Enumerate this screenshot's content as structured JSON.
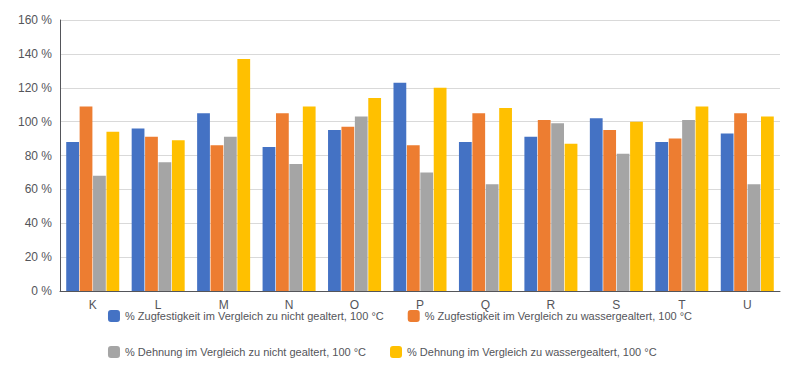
{
  "chart_data": {
    "type": "bar",
    "categories": [
      "K",
      "L",
      "M",
      "N",
      "O",
      "P",
      "Q",
      "R",
      "S",
      "T",
      "U"
    ],
    "series": [
      {
        "name": "% Zugfestigkeit im Vergleich zu nicht gealtert, 100 °C",
        "color": "#4472C4",
        "values": [
          88,
          96,
          105,
          85,
          95,
          123,
          88,
          91,
          102,
          88,
          93
        ]
      },
      {
        "name": "% Zugfestigkeit im Vergleich zu wassergealtert, 100 °C",
        "color": "#ED7D31",
        "values": [
          109,
          91,
          86,
          105,
          97,
          86,
          105,
          101,
          95,
          90,
          105
        ]
      },
      {
        "name": "% Dehnung im Vergleich zu nicht gealtert, 100 °C",
        "color": "#A5A5A5",
        "values": [
          68,
          76,
          91,
          75,
          103,
          70,
          63,
          99,
          81,
          101,
          63
        ]
      },
      {
        "name": "% Dehnung im Vergleich zu wassergealtert, 100 °C",
        "color": "#FFC000",
        "values": [
          94,
          89,
          137,
          109,
          114,
          120,
          108,
          87,
          100,
          109,
          103
        ]
      }
    ],
    "ylim": [
      0,
      160
    ],
    "yticks": [
      {
        "value": 0,
        "label": "0 %"
      },
      {
        "value": 20,
        "label": "20 %"
      },
      {
        "value": 40,
        "label": "40 %"
      },
      {
        "value": 60,
        "label": "60 %"
      },
      {
        "value": 80,
        "label": "80 %"
      },
      {
        "value": 100,
        "label": "100 %"
      },
      {
        "value": 120,
        "label": "120 %"
      },
      {
        "value": 140,
        "label": "140 %"
      },
      {
        "value": 160,
        "label": "160 %"
      }
    ],
    "grid": true,
    "legend": "bottom"
  }
}
